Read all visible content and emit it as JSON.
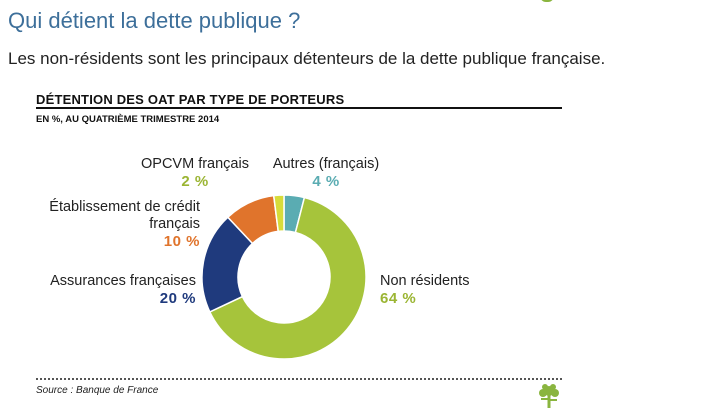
{
  "header": {
    "title": "Qui détient la dette publique ?",
    "subtitle": "Les non-résidents sont les principaux détenteurs de la dette publique française."
  },
  "chart_data": {
    "type": "pie",
    "title": "DÉTENTION DES OAT PAR TYPE DE PORTEURS",
    "subtitle": "EN %, AU QUATRIÈME TRIMESTRE 2014",
    "source": "Source : Banque de France",
    "slices": [
      {
        "label": "Autres (français)",
        "value": 4,
        "pct_label": "4 %",
        "color": "#5aacb2"
      },
      {
        "label": "Non résidents",
        "value": 64,
        "pct_label": "64 %",
        "color": "#a6c43b"
      },
      {
        "label": "Assurances françaises",
        "value": 20,
        "pct_label": "20 %",
        "color": "#1f3a7d"
      },
      {
        "label_lines": [
          "Établissement de crédit",
          "français"
        ],
        "label": "Établissement de crédit français",
        "value": 10,
        "pct_label": "10 %",
        "color": "#e0742c"
      },
      {
        "label": "OPCVM français",
        "value": 2,
        "pct_label": "2 %",
        "color": "#d6dc3a"
      }
    ]
  }
}
